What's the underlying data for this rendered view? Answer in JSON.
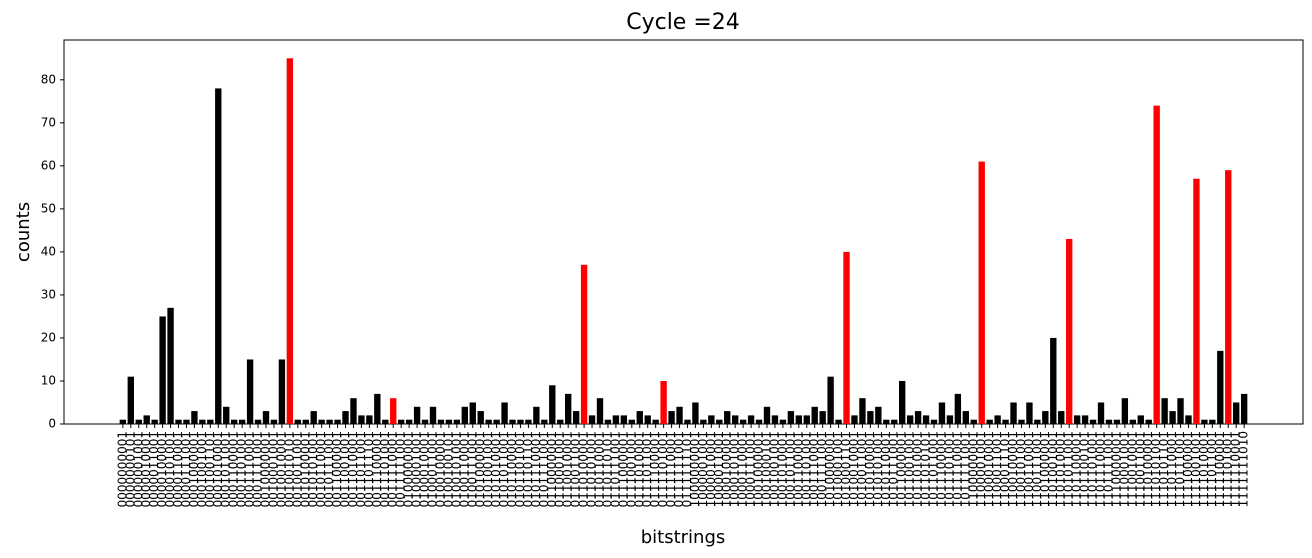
{
  "chart_data": {
    "type": "bar",
    "title": "Cycle =24",
    "x_label": "bitstrings",
    "y_label": "counts",
    "categories": [
      "0000000001",
      "0000000101",
      "0000001001",
      "0000010001",
      "0000011001",
      "0000100001",
      "0000101001",
      "0000110001",
      "0000111001",
      "0001000001",
      "0001001001",
      "0001001101",
      "0001010001",
      "0001011001",
      "0001100001",
      "0001101001",
      "0001110001",
      "0001111001",
      "0010000001",
      "0010001001",
      "0010010001",
      "0010010101",
      "0010011001",
      "0010100001",
      "0010101001",
      "0010110001",
      "0010111001",
      "0011000001",
      "0011001001",
      "0011010001",
      "0011011001",
      "0011011101",
      "0011100001",
      "0011101001",
      "0011110001",
      "0011111001",
      "0100000001",
      "0100001001",
      "0100010001",
      "0100011001",
      "0100100001",
      "0100100101",
      "0100101001",
      "0100110001",
      "0100111001",
      "0101000001",
      "0101001001",
      "0101010001",
      "0101011001",
      "0101100001",
      "0101101001",
      "0101101101",
      "0101110001",
      "0101111001",
      "0110000001",
      "0110001001",
      "0110010001",
      "0110011001",
      "0110100001",
      "0110101001",
      "0110110001",
      "0110110101",
      "0110111001",
      "0111000001",
      "0111001001",
      "0111010001",
      "0111011001",
      "0111100001",
      "0111101001",
      "0111110001",
      "0111111001",
      "0111111101",
      "1000000001",
      "1000001001",
      "1000010001",
      "1000011001",
      "1000100001",
      "1000101001",
      "1000110001",
      "1000111001",
      "1001000001",
      "1001000101",
      "1001001001",
      "1001010001",
      "1001011001",
      "1001100001",
      "1001101001",
      "1001110001",
      "1001111001",
      "1010000001",
      "1010001001",
      "1010001101",
      "1010010001",
      "1010011001",
      "1010100001",
      "1010101001",
      "1010110001",
      "1010111001",
      "1011000001",
      "1011001001",
      "1011010001",
      "1011010101",
      "1011011001",
      "1011100001",
      "1011101001",
      "1011110001",
      "1011111001",
      "1100000001",
      "1100001001",
      "1100010001",
      "1100011001",
      "1100011101",
      "1100100001",
      "1100101001",
      "1100110001",
      "1100111001",
      "1101000001",
      "1101001001",
      "1101010001",
      "1101011001",
      "1101100001",
      "1101100101",
      "1101101001",
      "1101110001",
      "1101111001",
      "1110000001",
      "1110001001",
      "1110010001",
      "1110011001",
      "1110100001",
      "1110101001",
      "1110101101",
      "1110110001",
      "1110111001",
      "1111000001",
      "1111001001",
      "1111010001",
      "1111011001",
      "1111100001",
      "1111101001",
      "1111110001",
      "1111111010"
    ],
    "values": [
      1,
      11,
      1,
      2,
      1,
      25,
      27,
      1,
      1,
      3,
      1,
      1,
      78,
      4,
      1,
      1,
      15,
      1,
      3,
      1,
      15,
      85,
      1,
      1,
      3,
      1,
      1,
      1,
      3,
      6,
      2,
      2,
      7,
      1,
      6,
      1,
      1,
      4,
      1,
      4,
      1,
      1,
      1,
      4,
      5,
      3,
      1,
      1,
      5,
      1,
      1,
      1,
      4,
      1,
      9,
      1,
      7,
      3,
      37,
      2,
      6,
      1,
      2,
      2,
      1,
      3,
      2,
      1,
      10,
      3,
      4,
      1,
      5,
      1,
      2,
      1,
      3,
      2,
      1,
      2,
      1,
      4,
      2,
      1,
      3,
      2,
      2,
      4,
      3,
      11,
      1,
      40,
      2,
      6,
      3,
      4,
      1,
      1,
      10,
      2,
      3,
      2,
      1,
      5,
      2,
      7,
      3,
      1,
      61,
      1,
      2,
      1,
      5,
      1,
      5,
      1,
      3,
      20,
      3,
      43,
      2,
      2,
      1,
      5,
      1,
      1,
      6,
      1,
      2,
      1,
      74,
      6,
      3,
      6,
      2,
      57,
      1,
      1,
      17,
      59,
      5,
      7
    ],
    "colors": [
      "black",
      "black",
      "black",
      "black",
      "black",
      "black",
      "black",
      "black",
      "black",
      "black",
      "black",
      "black",
      "black",
      "black",
      "black",
      "black",
      "black",
      "black",
      "black",
      "black",
      "black",
      "red",
      "black",
      "black",
      "black",
      "black",
      "black",
      "black",
      "black",
      "black",
      "black",
      "black",
      "black",
      "black",
      "red",
      "black",
      "black",
      "black",
      "black",
      "black",
      "black",
      "black",
      "black",
      "black",
      "black",
      "black",
      "black",
      "black",
      "black",
      "black",
      "black",
      "black",
      "black",
      "black",
      "black",
      "black",
      "black",
      "black",
      "red",
      "black",
      "black",
      "black",
      "black",
      "black",
      "black",
      "black",
      "black",
      "black",
      "red",
      "black",
      "black",
      "black",
      "black",
      "black",
      "black",
      "black",
      "black",
      "black",
      "black",
      "black",
      "black",
      "black",
      "black",
      "black",
      "black",
      "black",
      "black",
      "black",
      "black",
      "black",
      "black",
      "red",
      "black",
      "black",
      "black",
      "black",
      "black",
      "black",
      "black",
      "black",
      "black",
      "black",
      "black",
      "black",
      "black",
      "black",
      "black",
      "black",
      "red",
      "black",
      "black",
      "black",
      "black",
      "black",
      "black",
      "black",
      "black",
      "black",
      "black",
      "red",
      "black",
      "black",
      "black",
      "black",
      "black",
      "black",
      "black",
      "black",
      "black",
      "black",
      "red",
      "black",
      "black",
      "black",
      "black",
      "red",
      "black",
      "black",
      "black",
      "red",
      "black",
      "black"
    ],
    "ylim": [
      0,
      89.25
    ],
    "yticks": [
      0,
      10,
      20,
      30,
      40,
      50,
      60,
      70,
      80
    ],
    "grid": false
  }
}
